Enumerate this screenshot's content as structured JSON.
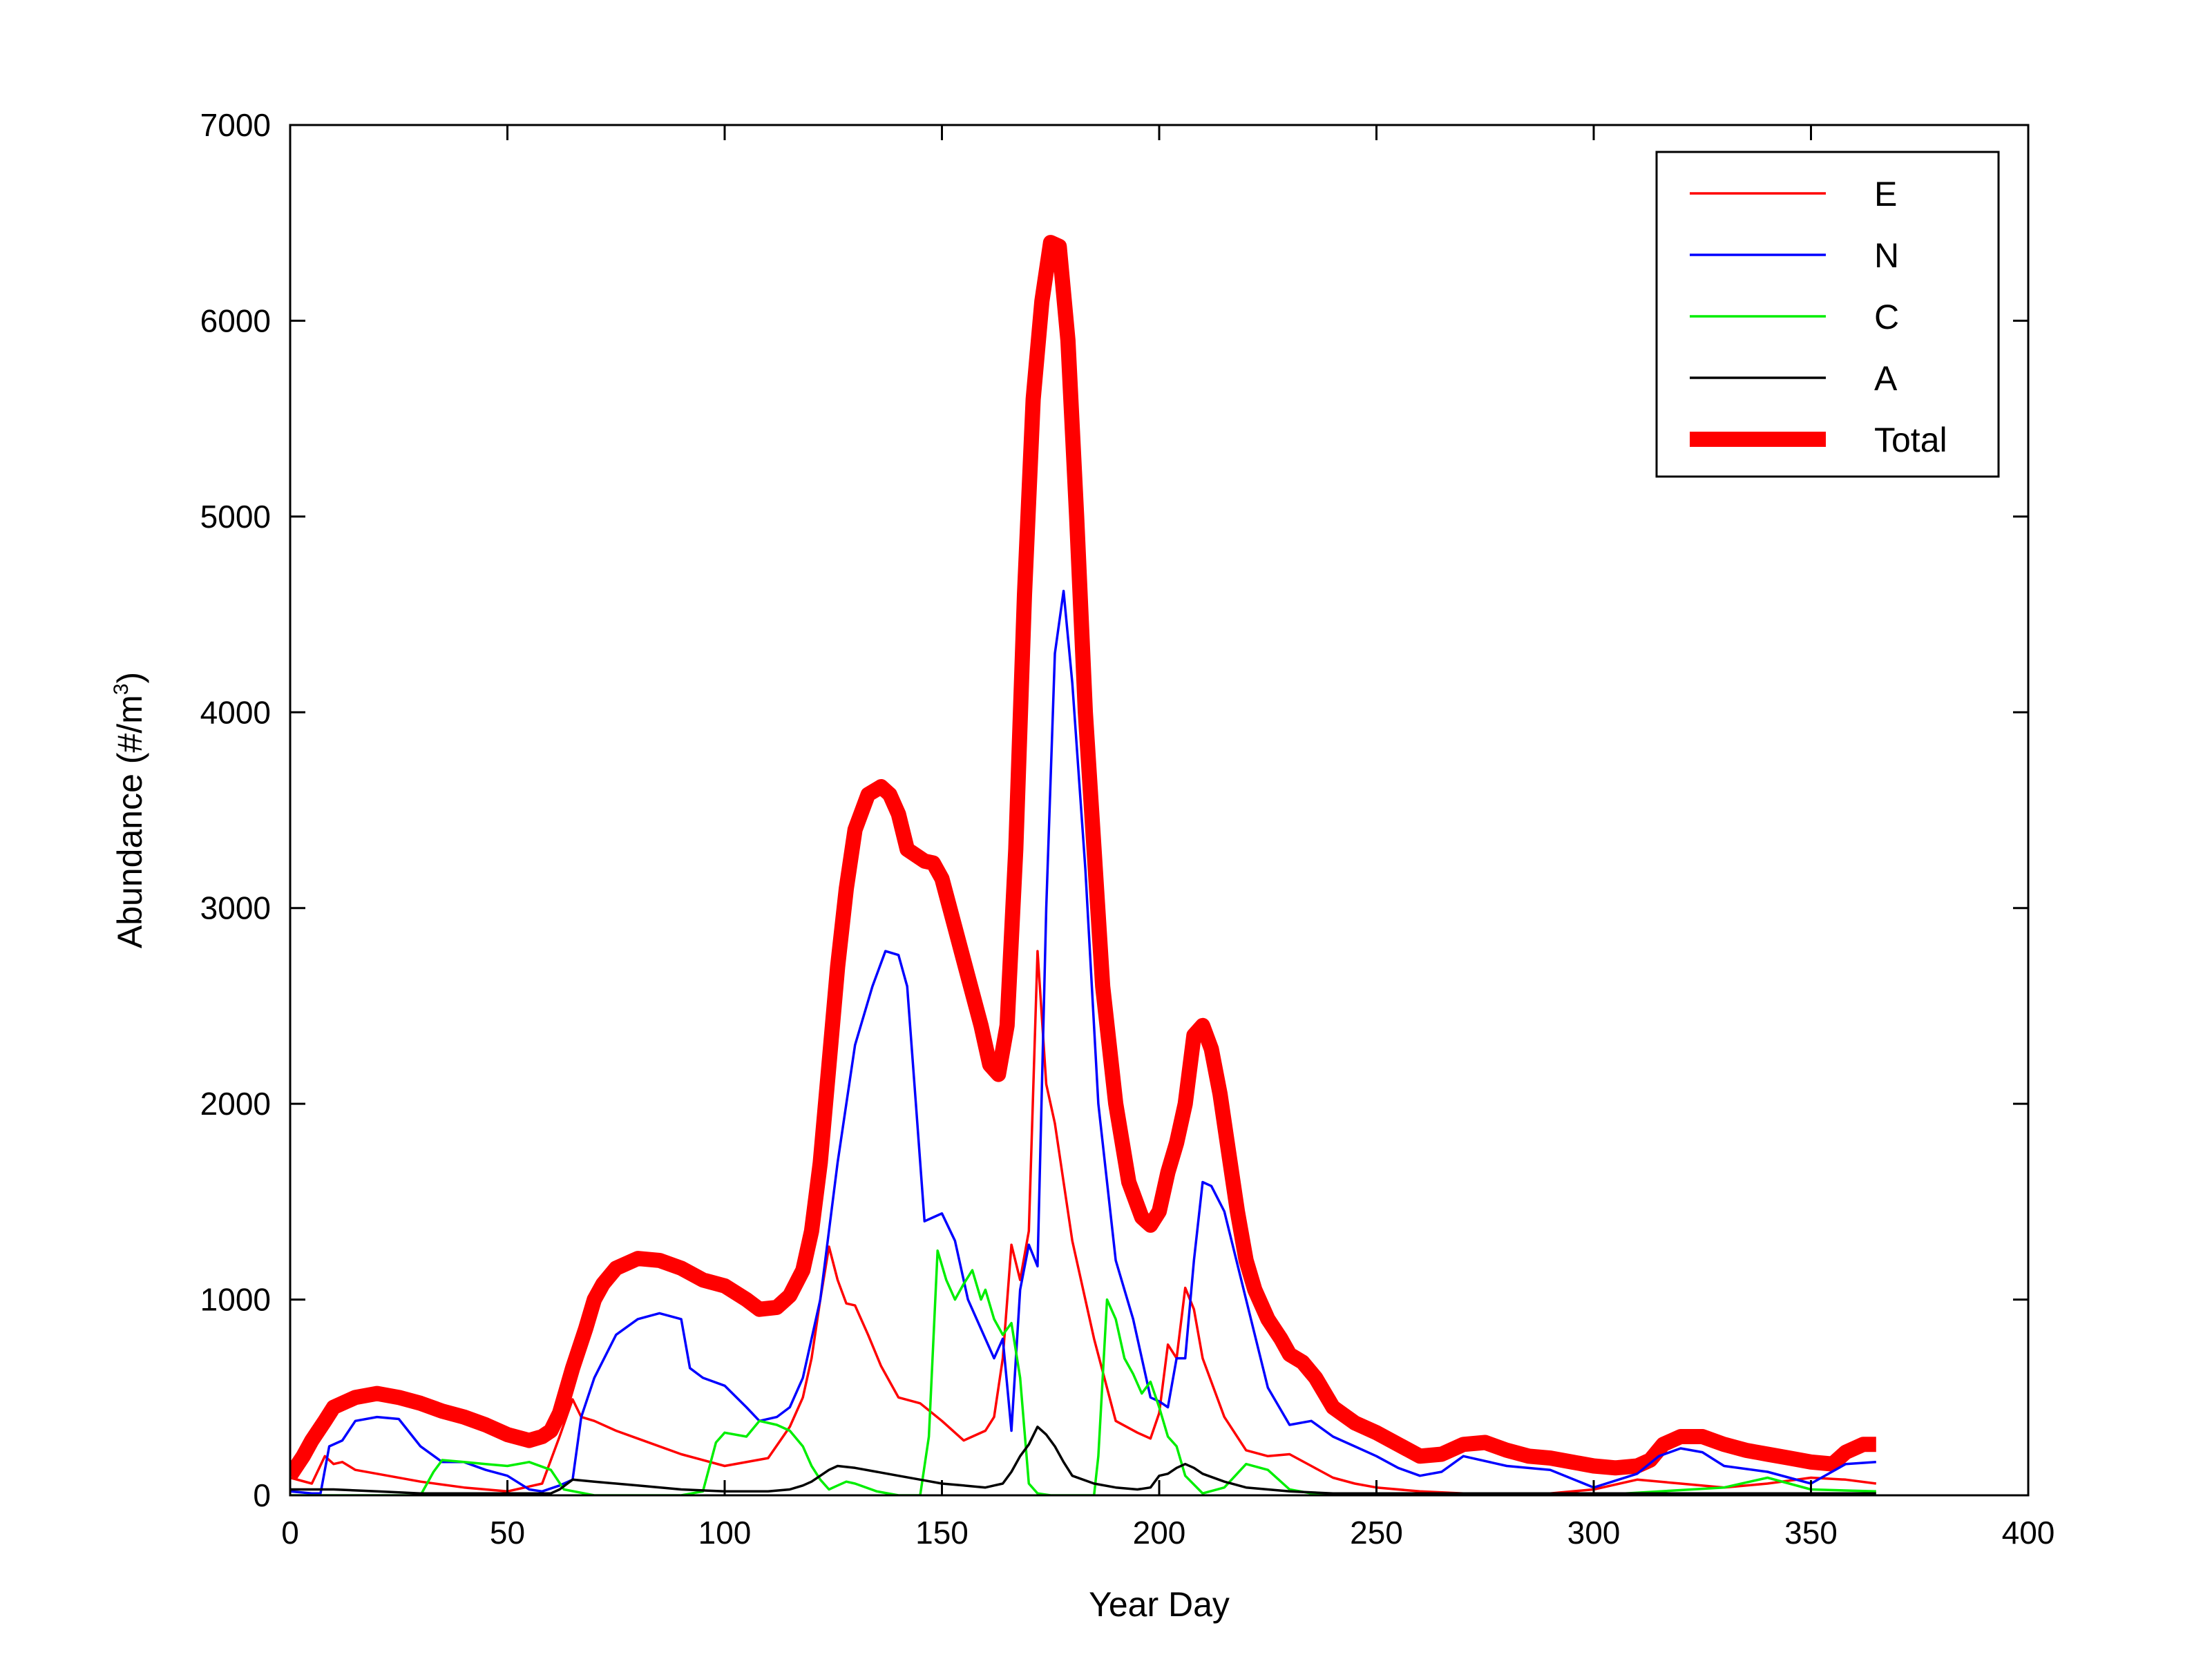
{
  "chart_data": {
    "type": "line",
    "xlabel": "Year Day",
    "ylabel_base": "Abundance (#/m",
    "ylabel_sup": "3",
    "ylabel_end": ")",
    "xlim": [
      0,
      400
    ],
    "ylim": [
      0,
      7000
    ],
    "xticks": [
      0,
      50,
      100,
      150,
      200,
      250,
      300,
      350,
      400
    ],
    "yticks": [
      0,
      1000,
      2000,
      3000,
      4000,
      5000,
      6000,
      7000
    ],
    "grid": false,
    "legend_position": "top-right",
    "series": [
      {
        "name": "E",
        "color": "#ff0000",
        "x": [
          0,
          5,
          8,
          10,
          12,
          15,
          20,
          30,
          40,
          50,
          58,
          62,
          65,
          67,
          70,
          75,
          80,
          90,
          100,
          110,
          115,
          118,
          120,
          122,
          124,
          126,
          128,
          130,
          133,
          136,
          140,
          145,
          150,
          155,
          160,
          162,
          164,
          166,
          168,
          170,
          172,
          174,
          176,
          178,
          180,
          185,
          190,
          195,
          198,
          200,
          202,
          204,
          206,
          208,
          210,
          215,
          220,
          225,
          230,
          235,
          240,
          245,
          250,
          260,
          270,
          280,
          290,
          300,
          310,
          320,
          330,
          340,
          350,
          358,
          365
        ],
        "y": [
          90,
          60,
          200,
          160,
          170,
          130,
          110,
          70,
          40,
          20,
          60,
          300,
          490,
          400,
          380,
          330,
          290,
          210,
          150,
          190,
          350,
          500,
          700,
          1000,
          1270,
          1100,
          980,
          970,
          820,
          660,
          500,
          470,
          380,
          280,
          330,
          400,
          700,
          1280,
          1100,
          1350,
          2780,
          2100,
          1900,
          1600,
          1300,
          800,
          380,
          320,
          290,
          420,
          770,
          700,
          1060,
          950,
          700,
          400,
          230,
          200,
          210,
          150,
          90,
          60,
          40,
          20,
          10,
          10,
          10,
          30,
          80,
          60,
          40,
          60,
          90,
          80,
          60
        ]
      },
      {
        "name": "N",
        "color": "#0000ff",
        "x": [
          0,
          5,
          7,
          9,
          12,
          15,
          20,
          25,
          30,
          35,
          40,
          45,
          50,
          55,
          58,
          62,
          65,
          67,
          70,
          75,
          80,
          85,
          90,
          92,
          95,
          100,
          105,
          108,
          112,
          115,
          118,
          122,
          126,
          130,
          134,
          137,
          140,
          142,
          144,
          146,
          148,
          150,
          153,
          156,
          160,
          162,
          164,
          166,
          168,
          170,
          172,
          174,
          176,
          178,
          180,
          183,
          186,
          190,
          194,
          198,
          200,
          202,
          204,
          206,
          208,
          210,
          212,
          215,
          220,
          225,
          230,
          235,
          240,
          245,
          250,
          255,
          260,
          265,
          270,
          280,
          290,
          300,
          310,
          315,
          320,
          325,
          330,
          340,
          350,
          358,
          365
        ],
        "y": [
          20,
          10,
          10,
          250,
          280,
          380,
          400,
          390,
          250,
          170,
          170,
          130,
          100,
          30,
          20,
          50,
          80,
          400,
          600,
          820,
          900,
          930,
          900,
          650,
          600,
          560,
          450,
          380,
          400,
          450,
          600,
          1000,
          1700,
          2300,
          2600,
          2780,
          2760,
          2600,
          2000,
          1400,
          1420,
          1440,
          1300,
          1000,
          800,
          700,
          800,
          330,
          1050,
          1280,
          1170,
          3000,
          4300,
          4620,
          4150,
          3200,
          2000,
          1200,
          900,
          500,
          480,
          450,
          700,
          700,
          1200,
          1600,
          1580,
          1450,
          1000,
          550,
          360,
          380,
          300,
          250,
          200,
          140,
          100,
          120,
          200,
          150,
          130,
          40,
          110,
          200,
          240,
          220,
          150,
          120,
          60,
          160,
          170
        ]
      },
      {
        "name": "C",
        "color": "#00ee00",
        "x": [
          0,
          30,
          33,
          35,
          40,
          45,
          50,
          55,
          60,
          63,
          70,
          90,
          95,
          98,
          100,
          105,
          108,
          112,
          115,
          118,
          120,
          122,
          124,
          126,
          128,
          130,
          135,
          140,
          145,
          147,
          149,
          151,
          153,
          155,
          157,
          159,
          160,
          162,
          164,
          166,
          168,
          170,
          172,
          175,
          180,
          185,
          186,
          188,
          190,
          192,
          194,
          196,
          198,
          200,
          202,
          204,
          206,
          210,
          215,
          220,
          225,
          230,
          235,
          240,
          250,
          300,
          330,
          340,
          350,
          365
        ],
        "y": [
          0,
          0,
          120,
          180,
          170,
          160,
          150,
          170,
          130,
          30,
          0,
          0,
          20,
          270,
          320,
          300,
          380,
          360,
          330,
          250,
          150,
          80,
          30,
          50,
          70,
          60,
          20,
          0,
          0,
          300,
          1250,
          1100,
          1000,
          1080,
          1150,
          1000,
          1050,
          900,
          820,
          880,
          600,
          60,
          10,
          0,
          0,
          0,
          200,
          1000,
          900,
          700,
          620,
          520,
          580,
          450,
          300,
          250,
          100,
          10,
          40,
          160,
          130,
          30,
          10,
          0,
          0,
          0,
          40,
          90,
          30,
          20
        ]
      },
      {
        "name": "A",
        "color": "#000000",
        "x": [
          0,
          10,
          20,
          30,
          40,
          50,
          55,
          60,
          62,
          65,
          70,
          80,
          90,
          100,
          110,
          115,
          118,
          120,
          122,
          124,
          126,
          130,
          135,
          140,
          145,
          150,
          155,
          160,
          162,
          164,
          166,
          168,
          170,
          172,
          174,
          176,
          178,
          180,
          185,
          190,
          195,
          198,
          200,
          202,
          204,
          206,
          208,
          210,
          215,
          220,
          225,
          230,
          240,
          250,
          260,
          270,
          280,
          290,
          300,
          320,
          340,
          365
        ],
        "y": [
          30,
          30,
          20,
          10,
          10,
          10,
          10,
          10,
          30,
          80,
          70,
          50,
          30,
          20,
          20,
          30,
          50,
          70,
          100,
          130,
          150,
          140,
          120,
          100,
          80,
          60,
          50,
          40,
          50,
          60,
          120,
          200,
          260,
          350,
          310,
          250,
          170,
          100,
          60,
          40,
          30,
          40,
          100,
          110,
          140,
          160,
          140,
          110,
          70,
          40,
          30,
          20,
          10,
          10,
          10,
          10,
          10,
          10,
          10,
          10,
          10,
          10
        ]
      },
      {
        "name": "Total",
        "color": "#ff0000",
        "thick": true,
        "x": [
          0,
          3,
          5,
          8,
          10,
          15,
          20,
          25,
          30,
          35,
          40,
          45,
          50,
          55,
          58,
          60,
          62,
          65,
          68,
          70,
          72,
          75,
          80,
          85,
          90,
          95,
          100,
          105,
          108,
          112,
          115,
          118,
          120,
          122,
          124,
          126,
          128,
          130,
          133,
          136,
          138,
          140,
          142,
          144,
          146,
          148,
          150,
          153,
          156,
          159,
          161,
          163,
          165,
          167,
          169,
          171,
          173,
          175,
          177,
          179,
          181,
          183,
          185,
          187,
          190,
          193,
          196,
          198,
          200,
          202,
          204,
          206,
          208,
          210,
          212,
          214,
          216,
          218,
          220,
          222,
          225,
          228,
          230,
          233,
          236,
          240,
          245,
          250,
          255,
          260,
          265,
          270,
          275,
          280,
          285,
          290,
          295,
          300,
          305,
          310,
          313,
          316,
          320,
          325,
          330,
          335,
          340,
          345,
          350,
          355,
          358,
          362,
          365
        ],
        "y": [
          100,
          200,
          280,
          380,
          450,
          500,
          520,
          500,
          470,
          430,
          400,
          360,
          310,
          280,
          300,
          330,
          420,
          650,
          850,
          1000,
          1080,
          1160,
          1210,
          1200,
          1160,
          1100,
          1070,
          1000,
          950,
          960,
          1020,
          1150,
          1350,
          1700,
          2200,
          2700,
          3100,
          3400,
          3580,
          3620,
          3580,
          3480,
          3300,
          3270,
          3240,
          3230,
          3150,
          2900,
          2650,
          2400,
          2200,
          2150,
          2400,
          3300,
          4600,
          5600,
          6100,
          6400,
          6380,
          5900,
          5000,
          4000,
          3300,
          2600,
          2000,
          1600,
          1420,
          1380,
          1450,
          1650,
          1800,
          2000,
          2350,
          2400,
          2280,
          2050,
          1750,
          1450,
          1200,
          1050,
          900,
          800,
          720,
          680,
          600,
          450,
          370,
          320,
          260,
          200,
          210,
          260,
          270,
          230,
          200,
          190,
          170,
          150,
          140,
          150,
          180,
          260,
          300,
          300,
          260,
          230,
          210,
          190,
          170,
          160,
          220,
          260,
          260
        ]
      }
    ]
  }
}
